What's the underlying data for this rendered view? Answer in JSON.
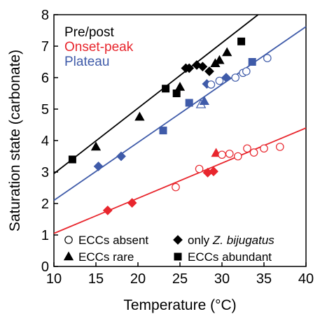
{
  "chart_data": {
    "type": "scatter",
    "title": "",
    "xlabel": "Temperature (°C)",
    "ylabel": "Saturation state (carbonate)",
    "xlim": [
      10,
      40
    ],
    "ylim": [
      0,
      8
    ],
    "xticks": [
      10,
      15,
      20,
      25,
      30,
      35,
      40
    ],
    "yticks": [
      0,
      1,
      2,
      3,
      4,
      5,
      6,
      7,
      8
    ],
    "grid": false,
    "legend_position": "top-left",
    "series": [
      {
        "name": "Pre/post",
        "color": "#000000",
        "fit": {
          "x": [
            10,
            34.3
          ],
          "y": [
            2.95,
            8.0
          ]
        },
        "points": [
          {
            "marker": "square",
            "filled": true,
            "x": 12.2,
            "y": 3.4
          },
          {
            "marker": "triangle",
            "filled": true,
            "x": 15.0,
            "y": 3.8
          },
          {
            "marker": "triangle",
            "filled": true,
            "x": 20.2,
            "y": 4.75
          },
          {
            "marker": "square",
            "filled": true,
            "x": 23.3,
            "y": 5.65
          },
          {
            "marker": "square",
            "filled": true,
            "x": 24.6,
            "y": 5.5
          },
          {
            "marker": "triangle",
            "filled": true,
            "x": 25.0,
            "y": 5.7
          },
          {
            "marker": "diamond",
            "filled": true,
            "x": 25.7,
            "y": 6.3
          },
          {
            "marker": "diamond",
            "filled": true,
            "x": 26.1,
            "y": 6.3
          },
          {
            "marker": "diamond",
            "filled": true,
            "x": 27.0,
            "y": 6.4
          },
          {
            "marker": "diamond",
            "filled": true,
            "x": 27.7,
            "y": 6.35
          },
          {
            "marker": "diamond",
            "filled": true,
            "x": 28.5,
            "y": 6.2
          },
          {
            "marker": "triangle",
            "filled": true,
            "x": 29.2,
            "y": 6.45
          },
          {
            "marker": "triangle",
            "filled": true,
            "x": 29.7,
            "y": 6.55
          },
          {
            "marker": "triangle",
            "filled": true,
            "x": 30.6,
            "y": 6.8
          },
          {
            "marker": "square",
            "filled": true,
            "x": 32.3,
            "y": 7.15
          }
        ]
      },
      {
        "name": "Onset-peak",
        "color": "#e8262d",
        "fit": {
          "x": [
            10,
            40
          ],
          "y": [
            1.05,
            4.4
          ]
        },
        "points": [
          {
            "marker": "diamond",
            "filled": true,
            "x": 16.4,
            "y": 1.78
          },
          {
            "marker": "diamond",
            "filled": true,
            "x": 19.3,
            "y": 2.02
          },
          {
            "marker": "circle",
            "filled": false,
            "x": 24.5,
            "y": 2.52
          },
          {
            "marker": "circle",
            "filled": false,
            "x": 27.3,
            "y": 3.1
          },
          {
            "marker": "diamond",
            "filled": true,
            "x": 28.3,
            "y": 2.98
          },
          {
            "marker": "diamond",
            "filled": true,
            "x": 29.0,
            "y": 3.02
          },
          {
            "marker": "triangle",
            "filled": true,
            "x": 29.3,
            "y": 3.6
          },
          {
            "marker": "circle",
            "filled": false,
            "x": 30.0,
            "y": 3.55
          },
          {
            "marker": "circle",
            "filled": false,
            "x": 30.9,
            "y": 3.58
          },
          {
            "marker": "circle",
            "filled": false,
            "x": 31.9,
            "y": 3.5
          },
          {
            "marker": "circle",
            "filled": false,
            "x": 33.0,
            "y": 3.75
          },
          {
            "marker": "circle",
            "filled": false,
            "x": 33.8,
            "y": 3.62
          },
          {
            "marker": "circle",
            "filled": false,
            "x": 35.0,
            "y": 3.75
          },
          {
            "marker": "circle",
            "filled": false,
            "x": 36.9,
            "y": 3.8
          }
        ]
      },
      {
        "name": "Plateau",
        "color": "#3f5ba9",
        "fit": {
          "x": [
            10,
            40
          ],
          "y": [
            2.1,
            7.62
          ]
        },
        "points": [
          {
            "marker": "diamond",
            "filled": true,
            "x": 15.3,
            "y": 3.18
          },
          {
            "marker": "diamond",
            "filled": true,
            "x": 18.0,
            "y": 3.5
          },
          {
            "marker": "square",
            "filled": true,
            "x": 23.0,
            "y": 4.32
          },
          {
            "marker": "square",
            "filled": true,
            "x": 26.1,
            "y": 5.2
          },
          {
            "marker": "triangle",
            "filled": false,
            "x": 27.5,
            "y": 5.15
          },
          {
            "marker": "triangle",
            "filled": true,
            "x": 27.9,
            "y": 5.25
          },
          {
            "marker": "diamond",
            "filled": true,
            "x": 28.2,
            "y": 5.8
          },
          {
            "marker": "circle",
            "filled": false,
            "x": 28.7,
            "y": 5.78
          },
          {
            "marker": "circle",
            "filled": false,
            "x": 29.7,
            "y": 5.9
          },
          {
            "marker": "diamond",
            "filled": true,
            "x": 30.5,
            "y": 6.0
          },
          {
            "marker": "circle",
            "filled": false,
            "x": 31.6,
            "y": 6.0
          },
          {
            "marker": "circle",
            "filled": false,
            "x": 32.5,
            "y": 6.15
          },
          {
            "marker": "circle",
            "filled": false,
            "x": 32.9,
            "y": 6.2
          },
          {
            "marker": "square",
            "filled": true,
            "x": 33.6,
            "y": 6.5
          },
          {
            "marker": "circle",
            "filled": false,
            "x": 35.4,
            "y": 6.62
          }
        ]
      }
    ],
    "marker_legend": {
      "position": "bottom",
      "items": [
        {
          "marker": "circle",
          "filled": false,
          "label": "ECCs absent"
        },
        {
          "marker": "diamond",
          "filled": true,
          "label": "only ",
          "label_italic": "Z. bijugatus"
        },
        {
          "marker": "triangle",
          "filled": true,
          "label": "ECCs rare"
        },
        {
          "marker": "square",
          "filled": true,
          "label": "ECCs abundant"
        }
      ]
    }
  }
}
